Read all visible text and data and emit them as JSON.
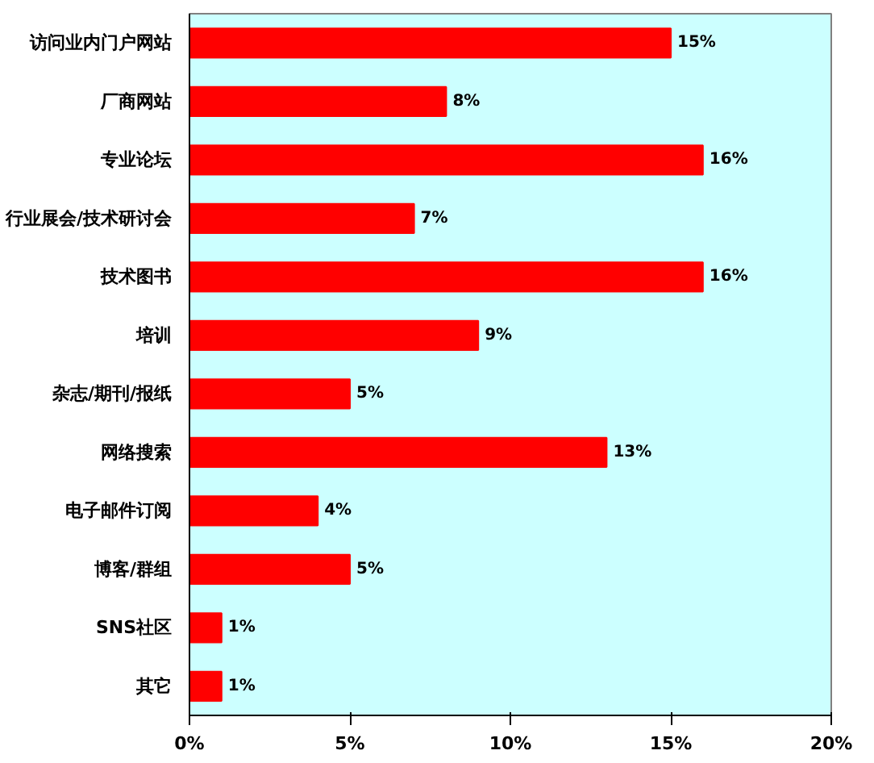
{
  "chart_data": {
    "type": "bar",
    "orientation": "horizontal",
    "categories": [
      "访问业内门户网站",
      "厂商网站",
      "专业论坛",
      "行业展会/技术研讨会",
      "技术图书",
      "培训",
      "杂志/期刊/报纸",
      "网络搜索",
      "电子邮件订阅",
      "博客/群组",
      "SNS社区",
      "其它"
    ],
    "values": [
      15,
      8,
      16,
      7,
      16,
      9,
      5,
      13,
      4,
      5,
      1,
      1
    ],
    "value_labels": [
      "15%",
      "8%",
      "16%",
      "7%",
      "16%",
      "9%",
      "5%",
      "13%",
      "4%",
      "5%",
      "1%",
      "1%"
    ],
    "color": "#ff0000",
    "xlim": [
      0,
      20
    ],
    "xticks": [
      {
        "value": 0,
        "label": "0%"
      },
      {
        "value": 5,
        "label": "5%"
      },
      {
        "value": 10,
        "label": "10%"
      },
      {
        "value": 15,
        "label": "15%"
      },
      {
        "value": 20,
        "label": "20%"
      }
    ],
    "grid": false
  }
}
